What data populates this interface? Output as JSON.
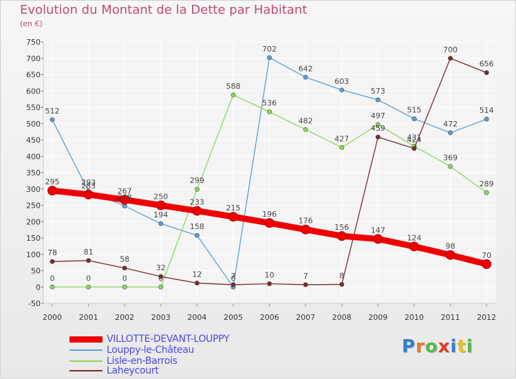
{
  "header": {
    "title": "Evolution du Montant de la Dette par Habitant",
    "subtitle": "(en €)"
  },
  "logo": {
    "text": "Proxiti",
    "letter_colors": [
      "#2f7fd0",
      "#e8752a",
      "#56b848",
      "#e23b30",
      "#2f7fd0",
      "#e8c020",
      "#56b848"
    ]
  },
  "chart_data": {
    "type": "line",
    "title": "Evolution du Montant de la Dette par Habitant",
    "subtitle": "(en €)",
    "xlabel": "",
    "ylabel": "",
    "x": [
      2000,
      2001,
      2002,
      2003,
      2004,
      2005,
      2006,
      2007,
      2008,
      2009,
      2010,
      2011,
      2012
    ],
    "y_ticks": [
      -50,
      0,
      50,
      100,
      150,
      200,
      250,
      300,
      350,
      400,
      450,
      500,
      550,
      600,
      650,
      700,
      750
    ],
    "ylim": [
      -50,
      750
    ],
    "grid": true,
    "legend_position": "bottom-left",
    "series": [
      {
        "name": "VILLOTTE-DEVANT-LOUPPY",
        "color": "#ee0000",
        "values": [
          295,
          283,
          267,
          250,
          233,
          215,
          196,
          176,
          156,
          147,
          124,
          98,
          70
        ]
      },
      {
        "name": "Louppy-le-Château",
        "color": "#5a9ed6",
        "values": [
          512,
          293,
          248,
          194,
          158,
          0,
          702,
          642,
          603,
          573,
          515,
          472,
          514
        ]
      },
      {
        "name": "Lisle-en-Barrois",
        "color": "#8ed65a",
        "values": [
          0,
          0,
          0,
          0,
          299,
          588,
          536,
          482,
          427,
          497,
          431,
          369,
          289
        ]
      },
      {
        "name": "Laheycourt",
        "color": "#7a2a2a",
        "values": [
          78,
          81,
          58,
          32,
          12,
          7,
          10,
          7,
          8,
          459,
          424,
          700,
          656
        ]
      }
    ]
  }
}
